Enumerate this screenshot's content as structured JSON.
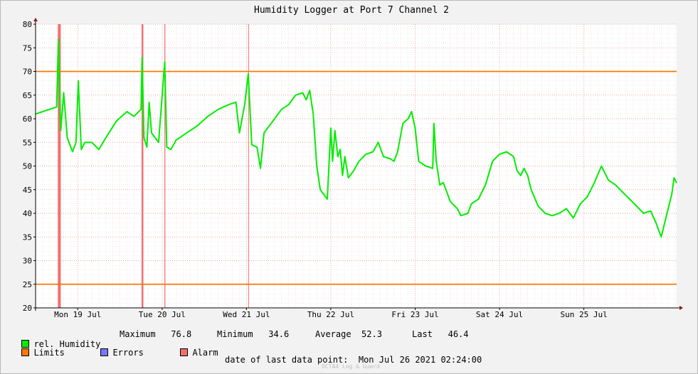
{
  "chart_data": {
    "type": "line",
    "title": "Humidity Logger at Port 7 Channel 2",
    "ylim": [
      20,
      80
    ],
    "y_ticks": [
      20,
      25,
      30,
      35,
      40,
      45,
      50,
      55,
      60,
      65,
      70,
      75,
      80
    ],
    "x_range_days": [
      "2021-07-18 12:00",
      "2021-07-26 02:24"
    ],
    "x_tick_labels": [
      {
        "label": "Mon 19 Jul",
        "date": "2021-07-19 00:00"
      },
      {
        "label": "Tue 20 Jul",
        "date": "2021-07-20 00:00"
      },
      {
        "label": "Wed 21 Jul",
        "date": "2021-07-21 00:00"
      },
      {
        "label": "Thu 22 Jul",
        "date": "2021-07-22 00:00"
      },
      {
        "label": "Fri 23 Jul",
        "date": "2021-07-23 00:00"
      },
      {
        "label": "Sat 24 Jul",
        "date": "2021-07-24 00:00"
      },
      {
        "label": "Sun 25 Jul",
        "date": "2021-07-25 00:00"
      }
    ],
    "grid": true,
    "limits": [
      70,
      25
    ],
    "alarm_intervals": [
      [
        "2021-07-18 18:20",
        "2021-07-18 19:10"
      ],
      [
        "2021-07-19 18:10",
        "2021-07-19 18:40"
      ],
      [
        "2021-07-20 00:40",
        "2021-07-20 00:55"
      ],
      [
        "2021-07-21 00:30",
        "2021-07-21 00:40"
      ]
    ],
    "series": [
      {
        "name": "rel. Humidity",
        "color": "#00ee00",
        "points": [
          [
            "2021-07-18 12:00",
            61
          ],
          [
            "2021-07-18 14:00",
            61.5
          ],
          [
            "2021-07-18 16:00",
            62
          ],
          [
            "2021-07-18 18:00",
            62.5
          ],
          [
            "2021-07-18 18:30",
            76.8
          ],
          [
            "2021-07-18 19:10",
            57.5
          ],
          [
            "2021-07-18 20:00",
            65.5
          ],
          [
            "2021-07-18 21:00",
            56
          ],
          [
            "2021-07-18 22:30",
            53
          ],
          [
            "2021-07-18 23:30",
            55
          ],
          [
            "2021-07-19 00:10",
            68
          ],
          [
            "2021-07-19 01:00",
            53.5
          ],
          [
            "2021-07-19 02:00",
            55
          ],
          [
            "2021-07-19 04:00",
            55
          ],
          [
            "2021-07-19 06:00",
            53.5
          ],
          [
            "2021-07-19 08:00",
            56
          ],
          [
            "2021-07-19 11:00",
            59.5
          ],
          [
            "2021-07-19 14:00",
            61.5
          ],
          [
            "2021-07-19 16:00",
            60.5
          ],
          [
            "2021-07-19 18:00",
            62
          ],
          [
            "2021-07-19 18:20",
            73
          ],
          [
            "2021-07-19 18:50",
            56
          ],
          [
            "2021-07-19 19:40",
            54
          ],
          [
            "2021-07-19 20:20",
            63.5
          ],
          [
            "2021-07-19 21:00",
            57
          ],
          [
            "2021-07-19 22:00",
            56
          ],
          [
            "2021-07-19 23:00",
            55
          ],
          [
            "2021-07-20 00:45",
            72
          ],
          [
            "2021-07-20 01:20",
            54
          ],
          [
            "2021-07-20 02:30",
            53.5
          ],
          [
            "2021-07-20 04:00",
            55.5
          ],
          [
            "2021-07-20 07:00",
            57
          ],
          [
            "2021-07-20 10:00",
            58.5
          ],
          [
            "2021-07-20 13:00",
            60.5
          ],
          [
            "2021-07-20 16:00",
            62
          ],
          [
            "2021-07-20 19:00",
            63
          ],
          [
            "2021-07-20 21:00",
            63.5
          ],
          [
            "2021-07-20 22:00",
            57
          ],
          [
            "2021-07-20 23:30",
            63
          ],
          [
            "2021-07-21 00:30",
            69.5
          ],
          [
            "2021-07-21 01:30",
            54.5
          ],
          [
            "2021-07-21 03:00",
            54
          ],
          [
            "2021-07-21 04:00",
            49.5
          ],
          [
            "2021-07-21 05:00",
            57
          ],
          [
            "2021-07-21 06:00",
            58
          ],
          [
            "2021-07-21 08:00",
            60
          ],
          [
            "2021-07-21 10:00",
            62
          ],
          [
            "2021-07-21 12:00",
            63
          ],
          [
            "2021-07-21 14:00",
            65
          ],
          [
            "2021-07-21 16:00",
            65.5
          ],
          [
            "2021-07-21 17:00",
            64
          ],
          [
            "2021-07-21 18:00",
            66
          ],
          [
            "2021-07-21 19:00",
            61
          ],
          [
            "2021-07-21 20:00",
            50
          ],
          [
            "2021-07-21 21:00",
            45
          ],
          [
            "2021-07-21 23:00",
            43
          ],
          [
            "2021-07-21 23:59",
            58
          ],
          [
            "2021-07-22 00:30",
            51
          ],
          [
            "2021-07-22 01:10",
            57.5
          ],
          [
            "2021-07-22 02:00",
            52
          ],
          [
            "2021-07-22 02:40",
            53.5
          ],
          [
            "2021-07-22 03:20",
            48
          ],
          [
            "2021-07-22 04:00",
            52
          ],
          [
            "2021-07-22 05:00",
            47.5
          ],
          [
            "2021-07-22 06:30",
            49
          ],
          [
            "2021-07-22 08:00",
            51
          ],
          [
            "2021-07-22 10:00",
            52.5
          ],
          [
            "2021-07-22 12:00",
            53
          ],
          [
            "2021-07-22 13:30",
            55
          ],
          [
            "2021-07-22 15:00",
            52
          ],
          [
            "2021-07-22 17:00",
            51.5
          ],
          [
            "2021-07-22 18:00",
            51
          ],
          [
            "2021-07-22 19:00",
            53
          ],
          [
            "2021-07-22 20:30",
            59
          ],
          [
            "2021-07-22 22:00",
            60
          ],
          [
            "2021-07-22 23:00",
            61.5
          ],
          [
            "2021-07-23 00:00",
            58
          ],
          [
            "2021-07-23 01:00",
            51
          ],
          [
            "2021-07-23 03:00",
            50
          ],
          [
            "2021-07-23 05:00",
            49.5
          ],
          [
            "2021-07-23 05:20",
            59
          ],
          [
            "2021-07-23 06:00",
            51
          ],
          [
            "2021-07-23 07:00",
            46
          ],
          [
            "2021-07-23 08:00",
            46.5
          ],
          [
            "2021-07-23 10:00",
            42.5
          ],
          [
            "2021-07-23 12:00",
            41
          ],
          [
            "2021-07-23 13:00",
            39.5
          ],
          [
            "2021-07-23 15:00",
            40
          ],
          [
            "2021-07-23 16:00",
            42
          ],
          [
            "2021-07-23 18:00",
            43
          ],
          [
            "2021-07-23 20:00",
            46
          ],
          [
            "2021-07-23 22:00",
            51
          ],
          [
            "2021-07-24 00:00",
            52.5
          ],
          [
            "2021-07-24 02:00",
            53
          ],
          [
            "2021-07-24 04:00",
            52
          ],
          [
            "2021-07-24 05:00",
            49
          ],
          [
            "2021-07-24 06:00",
            48
          ],
          [
            "2021-07-24 07:00",
            49.5
          ],
          [
            "2021-07-24 08:00",
            48
          ],
          [
            "2021-07-24 09:00",
            45
          ],
          [
            "2021-07-24 11:00",
            41.5
          ],
          [
            "2021-07-24 13:00",
            40
          ],
          [
            "2021-07-24 15:00",
            39.5
          ],
          [
            "2021-07-24 17:00",
            40
          ],
          [
            "2021-07-24 19:00",
            41
          ],
          [
            "2021-07-24 21:00",
            39
          ],
          [
            "2021-07-24 23:00",
            42
          ],
          [
            "2021-07-25 01:00",
            43.5
          ],
          [
            "2021-07-25 03:00",
            46.5
          ],
          [
            "2021-07-25 05:00",
            50
          ],
          [
            "2021-07-25 07:00",
            47
          ],
          [
            "2021-07-25 09:00",
            46
          ],
          [
            "2021-07-25 11:00",
            44.5
          ],
          [
            "2021-07-25 13:00",
            43
          ],
          [
            "2021-07-25 15:00",
            41.5
          ],
          [
            "2021-07-25 17:00",
            40
          ],
          [
            "2021-07-25 19:00",
            40.5
          ],
          [
            "2021-07-25 20:30",
            38
          ],
          [
            "2021-07-25 22:00",
            35
          ],
          [
            "2021-07-25 23:00",
            38
          ],
          [
            "2021-07-26 00:00",
            41
          ],
          [
            "2021-07-26 01:00",
            44
          ],
          [
            "2021-07-26 01:40",
            47.5
          ],
          [
            "2021-07-26 02:24",
            46.4
          ]
        ]
      }
    ]
  },
  "legend": {
    "humidity_label": "rel. Humidity",
    "maximum_label": "Maximum",
    "maximum_value": "76.8",
    "minimum_label": "Minimum",
    "minimum_value": "34.6",
    "average_label": "Average",
    "average_value": "52.3",
    "last_label": "Last",
    "last_value": "46.4",
    "limits_label": "Limits",
    "errors_label": "Errors",
    "alarm_label": "Alarm",
    "colors": {
      "humidity": "#00ee00",
      "limits": "#ff7700",
      "errors": "#7777ff",
      "alarm": "#f07070"
    }
  },
  "footer": {
    "last_point_label": "date of last data point:",
    "last_point_value": "Mon Jul 26 2021 02:24:00",
    "watermark": "OCTA4 Log & Guard"
  }
}
